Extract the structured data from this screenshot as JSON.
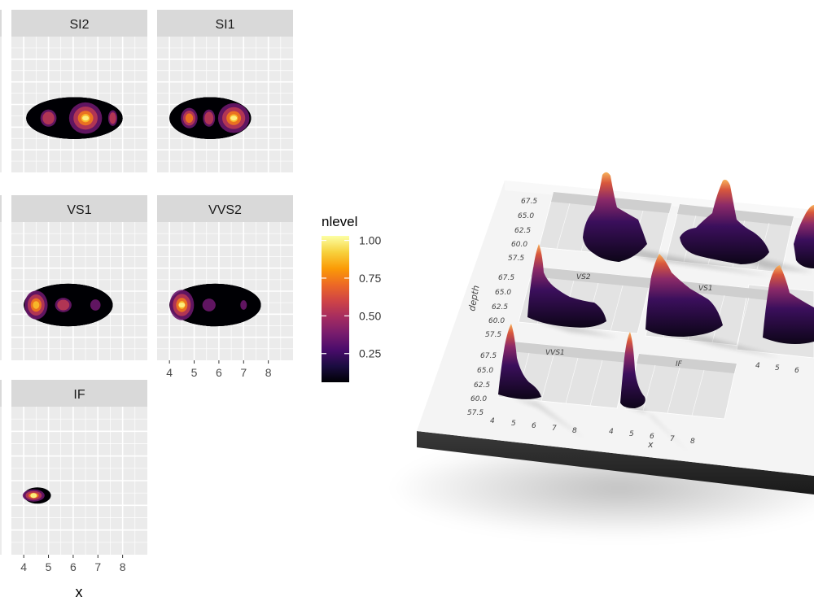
{
  "chart_data": [
    {
      "type": "heatmap",
      "facets": [
        {
          "label": "SI2",
          "peaks": [
            [
              6.5,
              0.45,
              1.0
            ],
            [
              5.0,
              0.4,
              0.55
            ],
            [
              7.6,
              0.25,
              0.5
            ]
          ]
        },
        {
          "label": "SI1",
          "peaks": [
            [
              6.6,
              0.45,
              0.95
            ],
            [
              4.8,
              0.35,
              0.65
            ],
            [
              5.6,
              0.3,
              0.55
            ]
          ]
        },
        {
          "label": "VS1",
          "peaks": [
            [
              4.5,
              0.35,
              0.9
            ],
            [
              5.6,
              0.5,
              0.45
            ],
            [
              6.9,
              0.4,
              0.35
            ]
          ]
        },
        {
          "label": "VVS2",
          "peaks": [
            [
              4.5,
              0.35,
              0.95
            ],
            [
              5.6,
              0.45,
              0.4
            ],
            [
              7.0,
              0.2,
              0.3
            ]
          ]
        },
        {
          "label": "IF",
          "peaks": [
            [
              4.4,
              0.3,
              1.0
            ]
          ]
        }
      ],
      "x_ticks": [
        "4",
        "5",
        "6",
        "7",
        "8"
      ],
      "xlabel": "x",
      "xlim": [
        3.5,
        9.0
      ],
      "legend": {
        "title": "nlevel",
        "ticks": [
          "1.00",
          "0.75",
          "0.50",
          "0.25"
        ],
        "tick_values": [
          1.0,
          0.75,
          0.5,
          0.25
        ],
        "colors": [
          "#000004",
          "#1b0c41",
          "#4a0c6b",
          "#781c6d",
          "#a52c60",
          "#cf4446",
          "#ed6925",
          "#fb9b06",
          "#f7d13d",
          "#fcffa4"
        ]
      },
      "grid": true
    },
    {
      "type": "3d-surface",
      "y_ticks": [
        "67.5",
        "65.0",
        "62.5",
        "60.0",
        "57.5"
      ],
      "x_ticks": [
        "4",
        "5",
        "6",
        "7",
        "8"
      ],
      "ylabel": "depth",
      "xlabel": "x",
      "facet_labels": [
        "VS2",
        "VS1",
        "VVS1",
        "IF"
      ]
    }
  ]
}
